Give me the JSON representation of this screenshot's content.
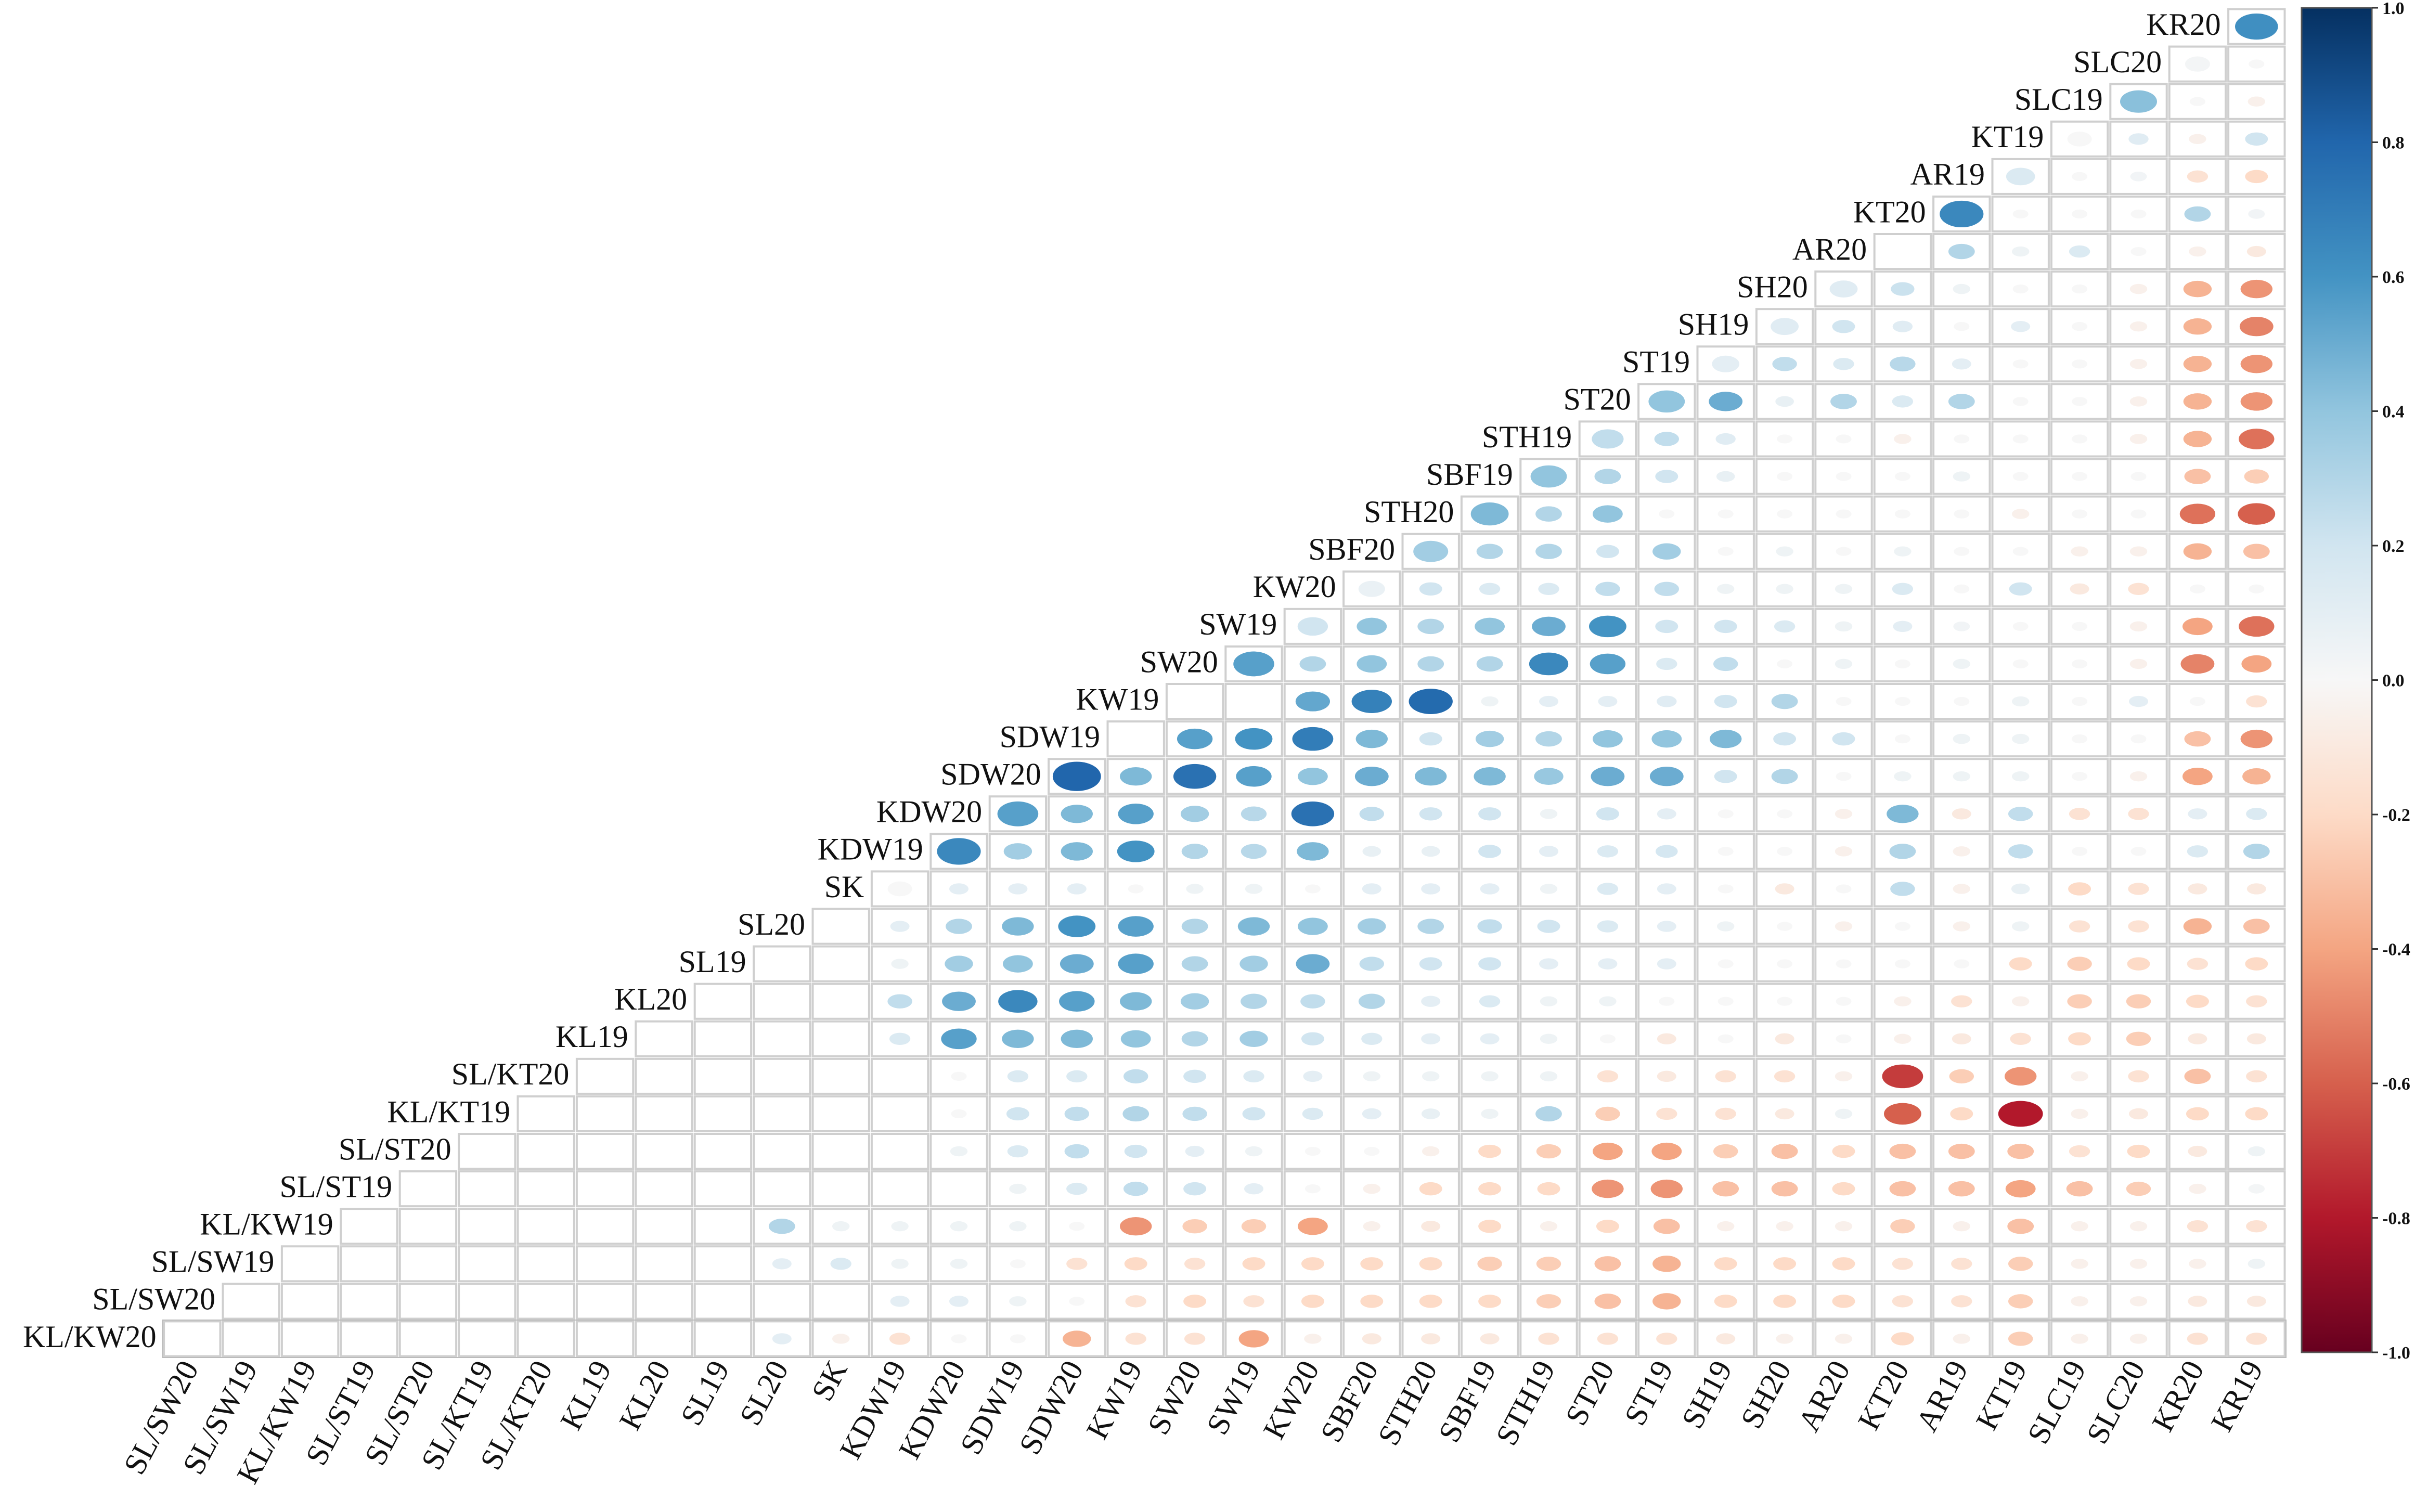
{
  "chart_data": {
    "type": "heatmap",
    "subtype": "lower-triangular correlation ellipse plot",
    "rows_top_to_bottom": [
      "KR20",
      "SLC20",
      "SLC19",
      "KT19",
      "AR19",
      "KT20",
      "AR20",
      "SH20",
      "SH19",
      "ST19",
      "ST20",
      "STH19",
      "SBF19",
      "STH20",
      "SBF20",
      "KW20",
      "SW19",
      "SW20",
      "KW19",
      "SDW19",
      "SDW20",
      "KDW20",
      "KDW19",
      "SK",
      "SL20",
      "SL19",
      "KL20",
      "KL19",
      "SL/KT20",
      "KL/KT19",
      "SL/ST20",
      "SL/ST19",
      "KL/KW19",
      "SL/SW19",
      "SL/SW20",
      "KL/KW20"
    ],
    "columns_left_to_right": [
      "SL/SW20",
      "SL/SW19",
      "KL/KW19",
      "SL/ST19",
      "SL/ST20",
      "SL/KT19",
      "SL/KT20",
      "KL19",
      "KL20",
      "SL19",
      "SL20",
      "SK",
      "KDW19",
      "KDW20",
      "SDW19",
      "SDW20",
      "KW19",
      "SW20",
      "SW19",
      "KW20",
      "SBF20",
      "STH20",
      "SBF19",
      "STH19",
      "ST20",
      "ST19",
      "SH19",
      "SH20",
      "AR20",
      "KT20",
      "AR19",
      "KT19",
      "SLC19",
      "SLC20",
      "KR20",
      "KR19"
    ],
    "correlations_by_row": [
      [
        0.62
      ],
      [
        0.02,
        0.0
      ],
      [
        0.42,
        0.0,
        -0.05
      ],
      [
        0.0,
        0.12,
        -0.05,
        0.2
      ],
      [
        0.05,
        0.15,
        0.0,
        0.03,
        -0.15,
        -0.2
      ],
      [
        0.08,
        0.65,
        0.0,
        0.0,
        0.0,
        0.3,
        0.03
      ],
      [
        0.3,
        0.05,
        0.15,
        0.0,
        -0.05,
        -0.1
      ],
      [
        0.12,
        0.0,
        0.12,
        0.22,
        0.05,
        0.0,
        0.0,
        -0.05,
        -0.35,
        -0.45
      ],
      [
        0.68,
        0.15,
        0.12,
        0.2,
        0.12,
        0.0,
        0.1,
        0.0,
        -0.05,
        -0.35,
        -0.5
      ],
      [
        0.4,
        0.4,
        0.1,
        0.25,
        0.15,
        0.28,
        0.1,
        0.0,
        0.0,
        -0.05,
        -0.35,
        -0.45
      ],
      [
        0.95,
        0.4,
        0.5,
        0.08,
        0.3,
        0.15,
        0.3,
        0.0,
        0.0,
        -0.05,
        -0.35,
        -0.45
      ],
      [
        0.4,
        0.5,
        0.25,
        0.25,
        0.12,
        0.0,
        0.0,
        -0.05,
        0.0,
        0.0,
        0.0,
        -0.05,
        -0.35,
        -0.55
      ],
      [
        0.45,
        0.3,
        0.4,
        0.3,
        0.2,
        0.08,
        0.0,
        0.0,
        0.0,
        0.05,
        0.0,
        0.0,
        0.0,
        -0.3,
        -0.25
      ],
      [
        0.7,
        0.58,
        0.45,
        0.3,
        0.4,
        0.0,
        0.0,
        0.0,
        0.0,
        0.0,
        0.0,
        -0.05,
        0.0,
        0.0,
        -0.55,
        -0.6
      ],
      [
        0.45,
        0.35,
        0.3,
        0.35,
        0.3,
        0.3,
        0.2,
        0.35,
        0.0,
        0.05,
        0.0,
        0.05,
        0.0,
        0.0,
        -0.05,
        -0.05,
        -0.35,
        -0.3
      ],
      [
        0.07,
        0.2,
        0.15,
        0.15,
        0.25,
        0.25,
        0.05,
        0.05,
        0.05,
        0.15,
        0.0,
        0.2,
        -0.1,
        -0.15,
        0.0,
        0.0
      ],
      [
        0.45,
        0.2,
        0.4,
        0.3,
        0.4,
        0.5,
        0.6,
        0.2,
        0.2,
        0.15,
        0.05,
        0.1,
        0.03,
        0.0,
        0.0,
        -0.05,
        -0.4,
        -0.55
      ],
      [
        0.68,
        0.55,
        0.3,
        0.4,
        0.3,
        0.3,
        0.65,
        0.55,
        0.15,
        0.25,
        0.0,
        0.05,
        0.0,
        0.05,
        0.0,
        0.0,
        -0.05,
        -0.5,
        -0.4
      ],
      [
        0.52,
        0.68,
        0.78,
        0.05,
        0.1,
        0.1,
        0.12,
        0.2,
        0.3,
        0.0,
        0.0,
        0.0,
        0.05,
        0.0,
        0.1,
        0.0,
        -0.15
      ],
      [
        0.55,
        0.6,
        0.7,
        0.45,
        0.2,
        0.35,
        0.3,
        0.4,
        0.4,
        0.45,
        0.2,
        0.2,
        0.0,
        0.05,
        0.05,
        0.0,
        0.0,
        -0.3,
        -0.45
      ],
      [
        0.8,
        0.45,
        0.75,
        0.55,
        0.4,
        0.5,
        0.45,
        0.45,
        0.38,
        0.5,
        0.5,
        0.2,
        0.3,
        0.0,
        0.05,
        0.05,
        0.05,
        0.0,
        -0.05,
        -0.4,
        -0.35
      ],
      [
        0.55,
        0.45,
        0.55,
        0.35,
        0.28,
        0.75,
        0.25,
        0.2,
        0.2,
        0.05,
        0.2,
        0.1,
        0.0,
        0.0,
        -0.05,
        0.45,
        -0.1,
        0.25,
        -0.15,
        -0.15,
        0.1,
        0.15
      ],
      [
        0.65,
        0.35,
        0.45,
        0.6,
        0.3,
        0.28,
        0.45,
        0.08,
        0.08,
        0.2,
        0.1,
        0.15,
        0.18,
        0.0,
        0.0,
        -0.05,
        0.3,
        -0.05,
        0.25,
        0.0,
        0.0,
        0.15,
        0.3
      ],
      [
        0.0,
        0.1,
        0.1,
        0.1,
        0.0,
        0.05,
        0.05,
        0.0,
        0.1,
        0.1,
        0.1,
        0.05,
        0.15,
        0.1,
        0.0,
        -0.1,
        0.0,
        0.25,
        -0.05,
        0.08,
        -0.2,
        -0.15,
        -0.1,
        -0.1
      ],
      [
        0.1,
        0.3,
        0.45,
        0.6,
        0.55,
        0.3,
        0.45,
        0.4,
        0.35,
        0.3,
        0.25,
        0.2,
        0.15,
        0.1,
        0.05,
        0.0,
        -0.05,
        0.0,
        -0.05,
        0.05,
        -0.15,
        -0.15,
        -0.35,
        -0.3
      ],
      [
        0.05,
        0.35,
        0.4,
        0.5,
        0.55,
        0.3,
        0.35,
        0.5,
        0.25,
        0.2,
        0.2,
        0.1,
        0.1,
        0.1,
        0.0,
        0.0,
        0.0,
        0.0,
        0.0,
        -0.2,
        -0.25,
        -0.2,
        -0.15,
        -0.2
      ],
      [
        0.25,
        0.5,
        0.65,
        0.55,
        0.45,
        0.35,
        0.3,
        0.25,
        0.3,
        0.1,
        0.15,
        0.05,
        0.05,
        0.0,
        0.0,
        0.0,
        0.0,
        -0.05,
        -0.15,
        -0.05,
        -0.25,
        -0.25,
        -0.2,
        -0.15
      ],
      [
        0.15,
        0.55,
        0.45,
        0.45,
        0.4,
        0.3,
        0.35,
        0.2,
        0.15,
        0.1,
        0.1,
        0.05,
        0.0,
        -0.1,
        0.0,
        -0.1,
        0.0,
        -0.05,
        -0.1,
        -0.15,
        -0.2,
        -0.25,
        -0.1,
        -0.1
      ],
      [
        0.0,
        0.15,
        0.15,
        0.25,
        0.2,
        0.15,
        0.1,
        0.05,
        0.05,
        0.05,
        0.05,
        -0.15,
        -0.1,
        -0.15,
        -0.15,
        -0.05,
        -0.7,
        -0.25,
        -0.45,
        -0.05,
        -0.15,
        -0.3,
        -0.15
      ],
      [
        0.0,
        0.2,
        0.25,
        0.3,
        0.25,
        0.2,
        0.15,
        0.1,
        0.08,
        0.05,
        0.3,
        -0.25,
        -0.15,
        -0.15,
        -0.1,
        0.05,
        -0.6,
        -0.2,
        -0.8,
        -0.05,
        -0.1,
        -0.2,
        -0.2
      ],
      [
        0.05,
        0.15,
        0.25,
        0.2,
        0.1,
        0.05,
        0.0,
        0.0,
        -0.05,
        -0.2,
        -0.25,
        -0.4,
        -0.4,
        -0.25,
        -0.3,
        -0.2,
        -0.3,
        -0.3,
        -0.3,
        -0.15,
        -0.2,
        -0.1,
        0.05
      ],
      [
        0.05,
        0.15,
        0.25,
        0.2,
        0.1,
        0.0,
        -0.05,
        -0.2,
        -0.2,
        -0.2,
        -0.45,
        -0.45,
        -0.3,
        -0.3,
        -0.2,
        -0.3,
        -0.3,
        -0.4,
        -0.3,
        -0.25,
        -0.05,
        0.02
      ],
      [
        0.3,
        0.05,
        0.05,
        0.05,
        0.05,
        0.0,
        -0.45,
        -0.25,
        -0.25,
        -0.4,
        -0.05,
        -0.1,
        -0.2,
        -0.05,
        -0.2,
        -0.3,
        -0.05,
        -0.05,
        -0.05,
        -0.25,
        -0.05,
        -0.3,
        -0.05,
        -0.05,
        -0.15,
        -0.15
      ],
      [
        0.1,
        0.15,
        0.05,
        0.05,
        0.0,
        -0.15,
        -0.2,
        -0.15,
        -0.2,
        -0.2,
        -0.2,
        -0.2,
        -0.25,
        -0.25,
        -0.3,
        -0.35,
        -0.2,
        -0.2,
        -0.2,
        -0.15,
        -0.15,
        -0.25,
        -0.05,
        -0.05,
        -0.05,
        0.05
      ],
      [
        0.1,
        0.1,
        0.05,
        0.0,
        -0.15,
        -0.2,
        -0.15,
        -0.2,
        -0.2,
        -0.2,
        -0.2,
        -0.25,
        -0.3,
        -0.35,
        -0.2,
        -0.2,
        -0.2,
        -0.15,
        -0.15,
        -0.25,
        -0.05,
        -0.05,
        -0.1,
        -0.1
      ],
      [
        0.1,
        -0.05,
        -0.15,
        0.0,
        0.0,
        -0.35,
        -0.15,
        -0.15,
        -0.4,
        -0.05,
        -0.1,
        -0.1,
        -0.1,
        -0.15,
        -0.15,
        -0.15,
        -0.1,
        -0.05,
        -0.05,
        -0.2,
        -0.05,
        -0.25,
        -0.05,
        -0.05,
        -0.15,
        -0.15
      ]
    ],
    "legend": {
      "type": "colorbar",
      "placement": "right",
      "range": [
        -1.0,
        1.0
      ],
      "ticks": [
        "1.0",
        "0.8",
        "0.6",
        "0.4",
        "0.2",
        "0.0",
        "-0.2",
        "-0.4",
        "-0.6",
        "-0.8",
        "-1.0"
      ],
      "palette": {
        "strong_positive": "#053061",
        "positive": "#4393c3",
        "weak_positive": "#d1e5f0",
        "zero": "#f7f7f7",
        "weak_negative": "#fddbc7",
        "negative": "#d6604d",
        "strong_negative": "#67001f"
      }
    },
    "title": "",
    "xlabel": "",
    "ylabel": ""
  }
}
